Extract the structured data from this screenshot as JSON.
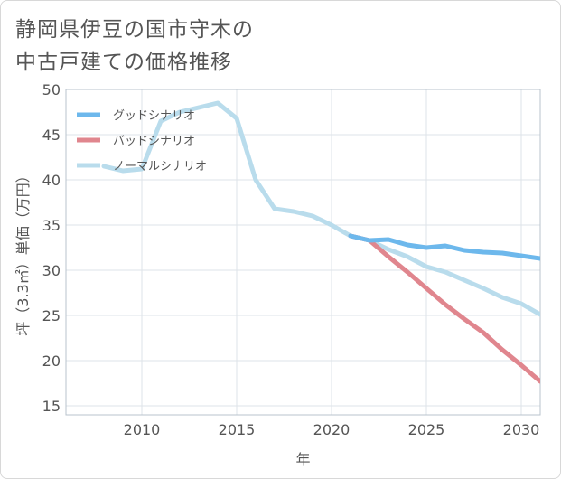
{
  "title": "静岡県伊豆の国市守木の\n中古戸建ての価格推移",
  "chart_data": {
    "type": "line",
    "xlabel": "年",
    "ylabel": "坪（3.3㎡）単価（万円）",
    "xlim": [
      2006,
      2031
    ],
    "ylim": [
      14,
      50
    ],
    "xticks": [
      2010,
      2015,
      2020,
      2025,
      2030
    ],
    "yticks": [
      15,
      20,
      25,
      30,
      35,
      40,
      45,
      50
    ],
    "grid": true,
    "legend_position": "top-left",
    "series": [
      {
        "name": "グッドシナリオ",
        "color": "#6db8ec",
        "x": [
          2021,
          2022,
          2023,
          2024,
          2025,
          2026,
          2027,
          2028,
          2029,
          2030,
          2031
        ],
        "y": [
          33.8,
          33.3,
          33.4,
          32.8,
          32.5,
          32.7,
          32.2,
          32.0,
          31.9,
          31.6,
          31.3
        ]
      },
      {
        "name": "バッドシナリオ",
        "color": "#e0868e",
        "x": [
          2021,
          2022,
          2023,
          2024,
          2025,
          2026,
          2027,
          2028,
          2029,
          2030,
          2031
        ],
        "y": [
          33.8,
          33.3,
          31.5,
          29.8,
          28.0,
          26.2,
          24.6,
          23.1,
          21.2,
          19.5,
          17.7
        ]
      },
      {
        "name": "ノーマルシナリオ",
        "color": "#b9dcec",
        "x": [
          2008,
          2009,
          2010,
          2011,
          2012,
          2013,
          2014,
          2015,
          2016,
          2017,
          2018,
          2019,
          2020,
          2021,
          2022,
          2023,
          2024,
          2025,
          2026,
          2027,
          2028,
          2029,
          2030,
          2031
        ],
        "y": [
          41.5,
          41.0,
          41.2,
          46.5,
          47.5,
          48.0,
          48.5,
          46.8,
          40.0,
          36.8,
          36.5,
          36.0,
          35.0,
          33.8,
          33.3,
          32.3,
          31.5,
          30.4,
          29.8,
          28.9,
          28.0,
          27.0,
          26.3,
          25.1
        ]
      }
    ]
  }
}
